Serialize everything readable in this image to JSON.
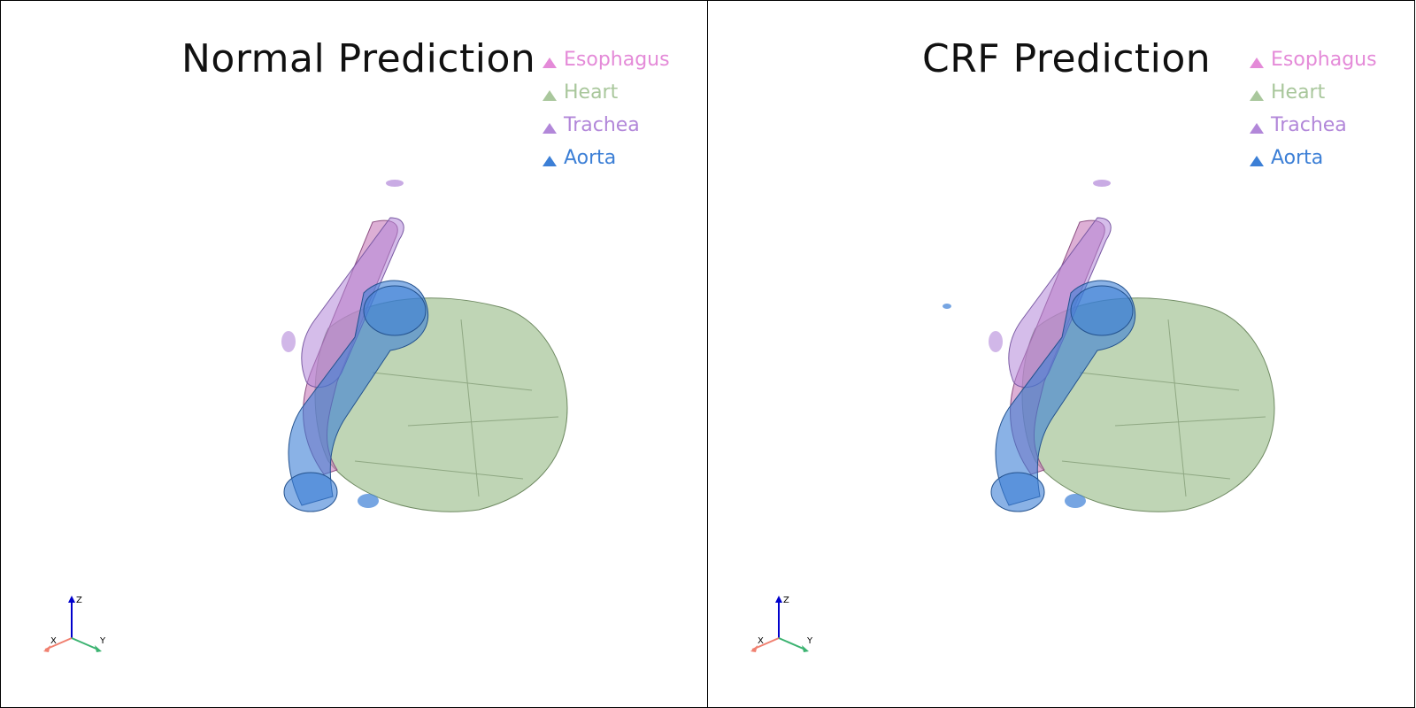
{
  "panels": [
    {
      "title": "Normal Prediction",
      "legend": [
        {
          "label": "Esophagus",
          "color": "#e48ad8"
        },
        {
          "label": "Heart",
          "color": "#a9c79c"
        },
        {
          "label": "Trachea",
          "color": "#b287d9"
        },
        {
          "label": "Aorta",
          "color": "#3c7fd6"
        }
      ],
      "axes": {
        "x": "X",
        "y": "Y",
        "z": "Z"
      }
    },
    {
      "title": "CRF Prediction",
      "legend": [
        {
          "label": "Esophagus",
          "color": "#e48ad8"
        },
        {
          "label": "Heart",
          "color": "#a9c79c"
        },
        {
          "label": "Trachea",
          "color": "#b287d9"
        },
        {
          "label": "Aorta",
          "color": "#3c7fd6"
        }
      ],
      "axes": {
        "x": "X",
        "y": "Y",
        "z": "Z"
      }
    }
  ]
}
